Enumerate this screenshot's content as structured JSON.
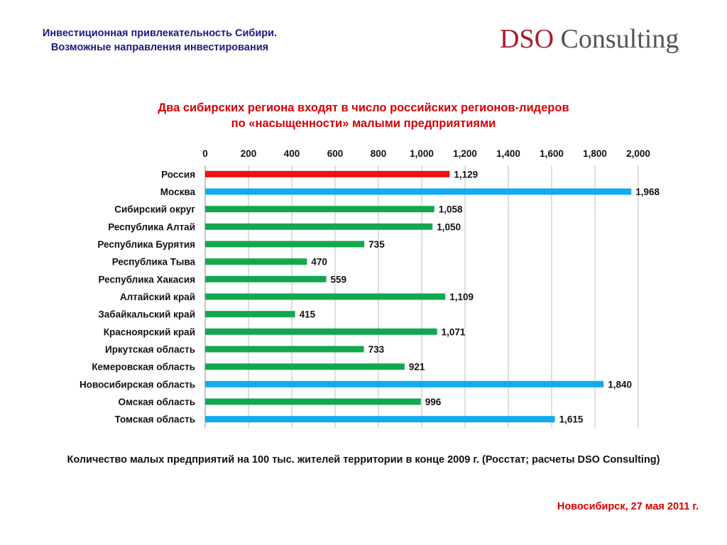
{
  "header": {
    "title_line1": "Инвестиционная привлекательность Сибири.",
    "title_line2": "Возможные направления инвестирования"
  },
  "logo": {
    "part1": "DSO",
    "part2": " Consulting"
  },
  "colors": {
    "highlight_red": "#ee1111",
    "highlight_blue": "#14aaee",
    "default_green": "#14a84e",
    "title_red": "#d50000",
    "header_navy": "#1a1a80"
  },
  "chart_data": {
    "type": "bar",
    "orientation": "horizontal",
    "title_line1": "Два сибирских региона входят в число российских регионов-лидеров",
    "title_line2": "по «насыщенности» малыми предприятиями",
    "xlabel": "",
    "ylabel": "",
    "xlim": [
      0,
      2000
    ],
    "x_ticks": [
      0,
      200,
      400,
      600,
      800,
      1000,
      1200,
      1400,
      1600,
      1800,
      2000
    ],
    "x_tick_labels": [
      "0",
      "200",
      "400",
      "600",
      "800",
      "1,000",
      "1,200",
      "1,400",
      "1,600",
      "1,800",
      "2,000"
    ],
    "axis_position": "top",
    "grid": "vertical",
    "legend": "none",
    "categories": [
      "Россия",
      "Москва",
      "Сибирский округ",
      "Республика Алтай",
      "Республика Бурятия",
      "Республика Тыва",
      "Республика Хакасия",
      "Алтайский край",
      "Забайкальский край",
      "Красноярский край",
      "Иркутская область",
      "Кемеровская область",
      "Новосибирская область",
      "Омская область",
      "Томская область"
    ],
    "values": [
      1129,
      1968,
      1058,
      1050,
      735,
      470,
      559,
      1109,
      415,
      1071,
      733,
      921,
      1840,
      996,
      1615
    ],
    "value_labels": [
      "1,129",
      "1,968",
      "1,058",
      "1,050",
      "735",
      "470",
      "559",
      "1,109",
      "415",
      "1,071",
      "733",
      "921",
      "1,840",
      "996",
      "1,615"
    ],
    "bar_colors": [
      "#ee1111",
      "#14aaee",
      "#14a84e",
      "#14a84e",
      "#14a84e",
      "#14a84e",
      "#14a84e",
      "#14a84e",
      "#14a84e",
      "#14a84e",
      "#14a84e",
      "#14a84e",
      "#14aaee",
      "#14a84e",
      "#14aaee"
    ]
  },
  "footnote": "Количество малых предприятий на 100 тыс. жителей территории в конце 2009 г. (Росстат; расчеты DSO Consulting)",
  "footer_date": "Новосибирск, 27 мая 2011 г."
}
